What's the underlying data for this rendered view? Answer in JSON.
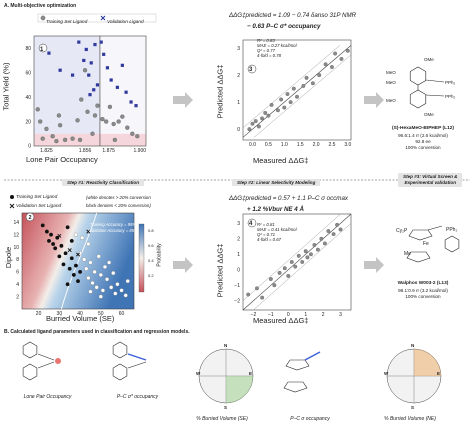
{
  "section_a": "A. Multi-objective optimization",
  "section_b": "B. Calculated ligand parameters used in classification and regression models.",
  "steps": {
    "s1": "Step #1: Reactivity Classification",
    "s2": "Step #2: Linear Selectivity Modeling",
    "s3a": "Step #3: Virtual Screen &",
    "s3b": "Experimental validation"
  },
  "panel1": {
    "badge": "1",
    "legend_train": "Training Set Ligand",
    "legend_valid": "Validation Ligand",
    "ylabel": "Total Yield (%)",
    "xlabel": "Lone Pair Occupancy",
    "xticks": [
      "1.825",
      "1.856",
      "1.875",
      "1.900"
    ],
    "yticks": [
      "0",
      "20",
      "40",
      "60",
      "80"
    ]
  },
  "panel3": {
    "badge": "3",
    "eq1": "ΔΔG‡predicted = 1.09 − 0.74 δanso 31P NMR",
    "eq2": "− 0.63 P–C σ* occupancy",
    "stats": [
      "R² = 0.83",
      "MAE = 0.27 kcal/mol",
      "Q² = 0.77",
      "4-fold = 0.78"
    ],
    "ylabel": "Predicted ΔΔG‡",
    "xlabel": "Measured ΔΔG‡",
    "xticks": [
      "0.0",
      "0.5",
      "1.0",
      "1.5",
      "2.0",
      "2.5",
      "3.0"
    ],
    "yticks": [
      "0",
      "1",
      "2",
      "3"
    ]
  },
  "ligand_top": {
    "name": "(S)-HexaMeO-BIPHEP (L12)",
    "line1": "96.6:1.4 rr (2.6 kcal/mol)",
    "line2": "92.8 ee",
    "line3": "100% conversion",
    "labels": [
      "OMe",
      "MeO",
      "MeO",
      "PPh₂",
      "PPh₂",
      "MeO",
      "OMe"
    ]
  },
  "panel2": {
    "badge": "2",
    "legend_train": "Training Set Ligand",
    "legend_valid": "Validation Set Ligand",
    "note1": "(white denotes > 20% conversion",
    "note2": "black denotes < 20% conversion)",
    "acc1": "Training Accuracy = 95%",
    "acc2": "Validation Accuracy = 85%",
    "prob": "Probability",
    "ylabel": "Dipole",
    "xlabel": "Burried Volume (SE)",
    "xticks": [
      "20",
      "30",
      "40",
      "50",
      "60"
    ],
    "yticks": [
      "14",
      "12",
      "10",
      "8",
      "6",
      "4",
      "2"
    ],
    "cbar": [
      "0.8",
      "0.6",
      "0.4",
      "0.2"
    ]
  },
  "panel4": {
    "badge": "4",
    "eq1": "ΔΔG‡predicted = 0.57 + 1.1 P–C σ occmax",
    "eq2": "+ 1.2 %Vbur NE 4 Å",
    "stats": [
      "R² = 0.81",
      "MAE = 0.41 kcal/mol",
      "Q² = 0.71",
      "4-fold = 0.67"
    ],
    "ylabel": "Predicted ΔΔG‡",
    "xlabel": "Measured ΔΔG‡",
    "xticks": [
      "−2",
      "−1",
      "0",
      "1",
      "2",
      "3"
    ],
    "yticks": [
      "3",
      "2",
      "1",
      "0",
      "−1",
      "−2"
    ]
  },
  "ligand_bottom": {
    "name": "Walphos W003-2 (L13)",
    "line1": "98.1:0.9 rr (3.2 kcal/mol)",
    "line2": "100% conversion",
    "labels": [
      "Cy₂P",
      "Fe",
      "PPh₂",
      "Me"
    ]
  },
  "descriptors": [
    "Lone Pair Occupancy",
    "P–C σ* occupancy",
    "% Burried Volume (SE)",
    "P–C σ occupancy",
    "% Burried Volume (NE)"
  ],
  "compass": [
    "N",
    "E",
    "S",
    "W"
  ],
  "colors": {
    "training": "#8a8a8a",
    "validation": "#2f3a9c",
    "contour_low": "#c9565b",
    "contour_high": "#3f74b5",
    "highlight_red": "#e0473c",
    "highlight_blue": "#3a5ed8"
  },
  "chart_data": [
    {
      "type": "scatter",
      "title": "",
      "xlabel": "Lone Pair Occupancy",
      "ylabel": "Total Yield (%)",
      "xlim": [
        1.815,
        1.905
      ],
      "ylim": [
        0,
        90
      ],
      "threshold_x": 1.868,
      "series": [
        {
          "name": "Training Set Ligand",
          "points": [
            [
              1.818,
              30
            ],
            [
              1.82,
              20
            ],
            [
              1.822,
              6
            ],
            [
              1.825,
              14
            ],
            [
              1.83,
              8
            ],
            [
              1.833,
              4
            ],
            [
              1.836,
              17
            ],
            [
              1.84,
              5
            ],
            [
              1.846,
              6
            ],
            [
              1.85,
              21
            ],
            [
              1.853,
              38
            ],
            [
              1.856,
              62
            ],
            [
              1.858,
              28
            ],
            [
              1.862,
              10
            ],
            [
              1.864,
              25
            ],
            [
              1.866,
              33
            ],
            [
              1.87,
              22
            ],
            [
              1.873,
              20
            ],
            [
              1.876,
              32
            ],
            [
              1.879,
              18
            ],
            [
              1.883,
              20
            ],
            [
              1.886,
              24
            ],
            [
              1.89,
              15
            ],
            [
              1.894,
              10
            ],
            [
              1.898,
              8
            ],
            [
              1.835,
              25
            ],
            [
              1.852,
              5
            ],
            [
              1.88,
              5
            ]
          ]
        },
        {
          "name": "Validation Ligand",
          "points": [
            [
              1.827,
              76
            ],
            [
              1.836,
              62
            ],
            [
              1.851,
              85
            ],
            [
              1.855,
              70
            ],
            [
              1.857,
              79
            ],
            [
              1.859,
              58
            ],
            [
              1.861,
              68
            ],
            [
              1.863,
              46
            ],
            [
              1.864,
              83
            ],
            [
              1.866,
              50
            ],
            [
              1.869,
              85
            ],
            [
              1.871,
              75
            ],
            [
              1.874,
              64
            ],
            [
              1.877,
              54
            ],
            [
              1.882,
              48
            ],
            [
              1.886,
              66
            ],
            [
              1.889,
              44
            ],
            [
              1.893,
              36
            ],
            [
              1.897,
              33
            ],
            [
              1.846,
              58
            ],
            [
              1.86,
              42
            ]
          ]
        }
      ]
    },
    {
      "type": "scatter",
      "title": "",
      "xlabel": "Measured ΔΔG‡",
      "ylabel": "Predicted ΔΔG‡",
      "xlim": [
        -0.3,
        3.1
      ],
      "ylim": [
        -0.4,
        3.3
      ],
      "fit_line": [
        [
          -0.3,
          -0.3
        ],
        [
          3.1,
          3.1
        ]
      ],
      "series": [
        {
          "name": "Training Set Ligand",
          "points": [
            [
              -0.1,
              0.0
            ],
            [
              0.0,
              0.2
            ],
            [
              0.1,
              0.3
            ],
            [
              0.2,
              0.1
            ],
            [
              0.3,
              0.4
            ],
            [
              0.4,
              0.6
            ],
            [
              0.5,
              0.5
            ],
            [
              0.6,
              0.9
            ],
            [
              0.8,
              0.7
            ],
            [
              0.9,
              1.1
            ],
            [
              1.0,
              0.8
            ],
            [
              1.1,
              1.3
            ],
            [
              1.2,
              1.0
            ],
            [
              1.3,
              1.5
            ],
            [
              1.4,
              1.2
            ],
            [
              1.6,
              1.6
            ],
            [
              1.7,
              1.9
            ],
            [
              1.9,
              1.7
            ],
            [
              2.1,
              2.0
            ],
            [
              2.3,
              2.4
            ],
            [
              2.5,
              2.3
            ],
            [
              2.6,
              2.8
            ],
            [
              2.8,
              2.6
            ],
            [
              3.0,
              2.9
            ]
          ]
        }
      ]
    },
    {
      "type": "scatter",
      "title": "",
      "xlabel": "Burried Volume (SE)",
      "ylabel": "Dipole",
      "xlim": [
        12,
        66
      ],
      "ylim": [
        0,
        15.5
      ],
      "series": [
        {
          "name": "Training Set Ligand (black)",
          "points": [
            [
              22,
              13.5
            ],
            [
              24,
              12.5
            ],
            [
              25,
              11.0
            ],
            [
              26,
              12.0
            ],
            [
              27,
              10.5
            ],
            [
              28,
              9.8
            ],
            [
              29,
              11.5
            ],
            [
              30,
              8.5
            ],
            [
              31,
              10.2
            ],
            [
              32,
              7.2
            ],
            [
              33,
              9.0
            ],
            [
              34,
              13.2
            ],
            [
              35,
              6.5
            ],
            [
              36,
              8.2
            ],
            [
              37,
              5.5
            ],
            [
              38,
              7.0
            ],
            [
              39,
              4.5
            ],
            [
              40,
              6.0
            ],
            [
              36,
              11.0
            ],
            [
              34,
              4.0
            ]
          ]
        },
        {
          "name": "Training Set Ligand (white)",
          "points": [
            [
              40,
              9.0
            ],
            [
              42,
              8.0
            ],
            [
              43,
              6.5
            ],
            [
              44,
              5.0
            ],
            [
              45,
              7.5
            ],
            [
              46,
              4.2
            ],
            [
              47,
              6.0
            ],
            [
              48,
              3.5
            ],
            [
              49,
              8.5
            ],
            [
              50,
              5.5
            ],
            [
              51,
              3.0
            ],
            [
              52,
              6.8
            ],
            [
              53,
              4.8
            ],
            [
              55,
              3.5
            ],
            [
              56,
              5.8
            ],
            [
              57,
              2.5
            ],
            [
              58,
              4.0
            ],
            [
              60,
              3.0
            ],
            [
              62,
              2.2
            ],
            [
              63,
              4.5
            ],
            [
              45,
              2.8
            ],
            [
              50,
              2.0
            ],
            [
              41,
              11.5
            ],
            [
              44,
              10.5
            ],
            [
              38,
              12.0
            ],
            [
              54,
              7.5
            ]
          ]
        },
        {
          "name": "Validation Set Ligand",
          "points": [
            [
              30,
              11.8
            ],
            [
              35,
              9.5
            ],
            [
              39,
              8.8
            ],
            [
              44,
              12.5
            ]
          ]
        }
      ],
      "colorbar": {
        "label": "Probability",
        "ticks": [
          0.2,
          0.4,
          0.6,
          0.8
        ]
      }
    },
    {
      "type": "scatter",
      "title": "",
      "xlabel": "Measured ΔΔG‡",
      "ylabel": "Predicted ΔΔG‡",
      "xlim": [
        -2.6,
        3.6
      ],
      "ylim": [
        -2.6,
        3.6
      ],
      "fit_line": [
        [
          -2.6,
          -2.6
        ],
        [
          3.6,
          3.6
        ]
      ],
      "series": [
        {
          "name": "Training Set Ligand",
          "points": [
            [
              -2.3,
              -1.6
            ],
            [
              -1.8,
              -1.2
            ],
            [
              -1.5,
              -1.8
            ],
            [
              -1.0,
              -0.6
            ],
            [
              -0.8,
              -1.0
            ],
            [
              -0.5,
              -0.2
            ],
            [
              -0.2,
              0.1
            ],
            [
              0.0,
              -0.4
            ],
            [
              0.2,
              0.5
            ],
            [
              0.4,
              0.2
            ],
            [
              0.6,
              0.9
            ],
            [
              0.8,
              0.5
            ],
            [
              1.0,
              1.2
            ],
            [
              1.1,
              0.8
            ],
            [
              1.3,
              1.0
            ],
            [
              1.5,
              1.6
            ],
            [
              1.7,
              1.3
            ],
            [
              1.9,
              2.0
            ],
            [
              2.1,
              1.7
            ],
            [
              2.3,
              2.5
            ],
            [
              2.6,
              2.3
            ],
            [
              2.8,
              2.9
            ],
            [
              3.0,
              2.6
            ]
          ]
        }
      ]
    }
  ]
}
